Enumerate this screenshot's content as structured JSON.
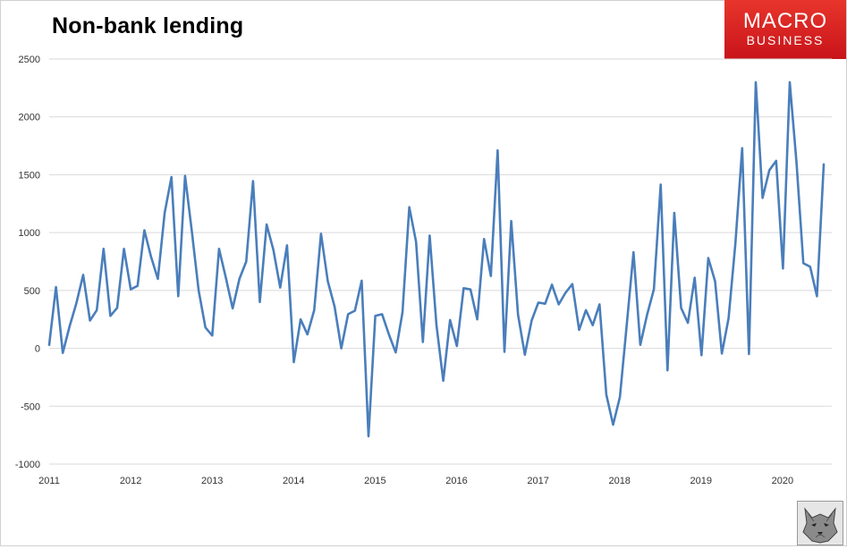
{
  "chart_data": {
    "type": "line",
    "title": "Non-bank lending",
    "xlabel": "",
    "ylabel": "",
    "ylim": [
      -1000,
      2500
    ],
    "yticks": [
      2500,
      2000,
      1500,
      1000,
      500,
      0,
      -500,
      -1000
    ],
    "xticks": [
      "2011",
      "2012",
      "2013",
      "2014",
      "2015",
      "2016",
      "2017",
      "2018",
      "2019",
      "2020"
    ],
    "grid": true,
    "legend": "none",
    "series": [
      {
        "color": "#4a7ebb",
        "values": [
          30,
          530,
          -40,
          190,
          390,
          635,
          240,
          330,
          860,
          280,
          350,
          860,
          510,
          540,
          1020,
          790,
          600,
          1170,
          1480,
          450,
          1490,
          1010,
          500,
          180,
          110,
          860,
          610,
          345,
          600,
          750,
          1445,
          400,
          1070,
          850,
          525,
          890,
          -120,
          250,
          120,
          330,
          990,
          580,
          360,
          0,
          295,
          325,
          585,
          -760,
          280,
          295,
          120,
          -35,
          310,
          1220,
          920,
          55,
          975,
          200,
          -280,
          245,
          20,
          520,
          510,
          250,
          945,
          625,
          1710,
          -30,
          1100,
          290,
          -55,
          240,
          395,
          385,
          550,
          380,
          480,
          555,
          160,
          330,
          200,
          380,
          -400,
          -660,
          -420,
          200,
          830,
          30,
          290,
          510,
          1415,
          -190,
          1170,
          350,
          220,
          610,
          -60,
          780,
          580,
          -45,
          260,
          905,
          1730,
          -50,
          2300,
          1300,
          1540,
          1620,
          690,
          2300,
          1600,
          735,
          705,
          450,
          1590
        ]
      }
    ]
  },
  "logo": {
    "line1": "MACRO",
    "line2": "BUSINESS"
  },
  "colors": {
    "line": "#4a7ebb",
    "grid": "#d9d9d9",
    "logo_bg": "#d9231f"
  }
}
